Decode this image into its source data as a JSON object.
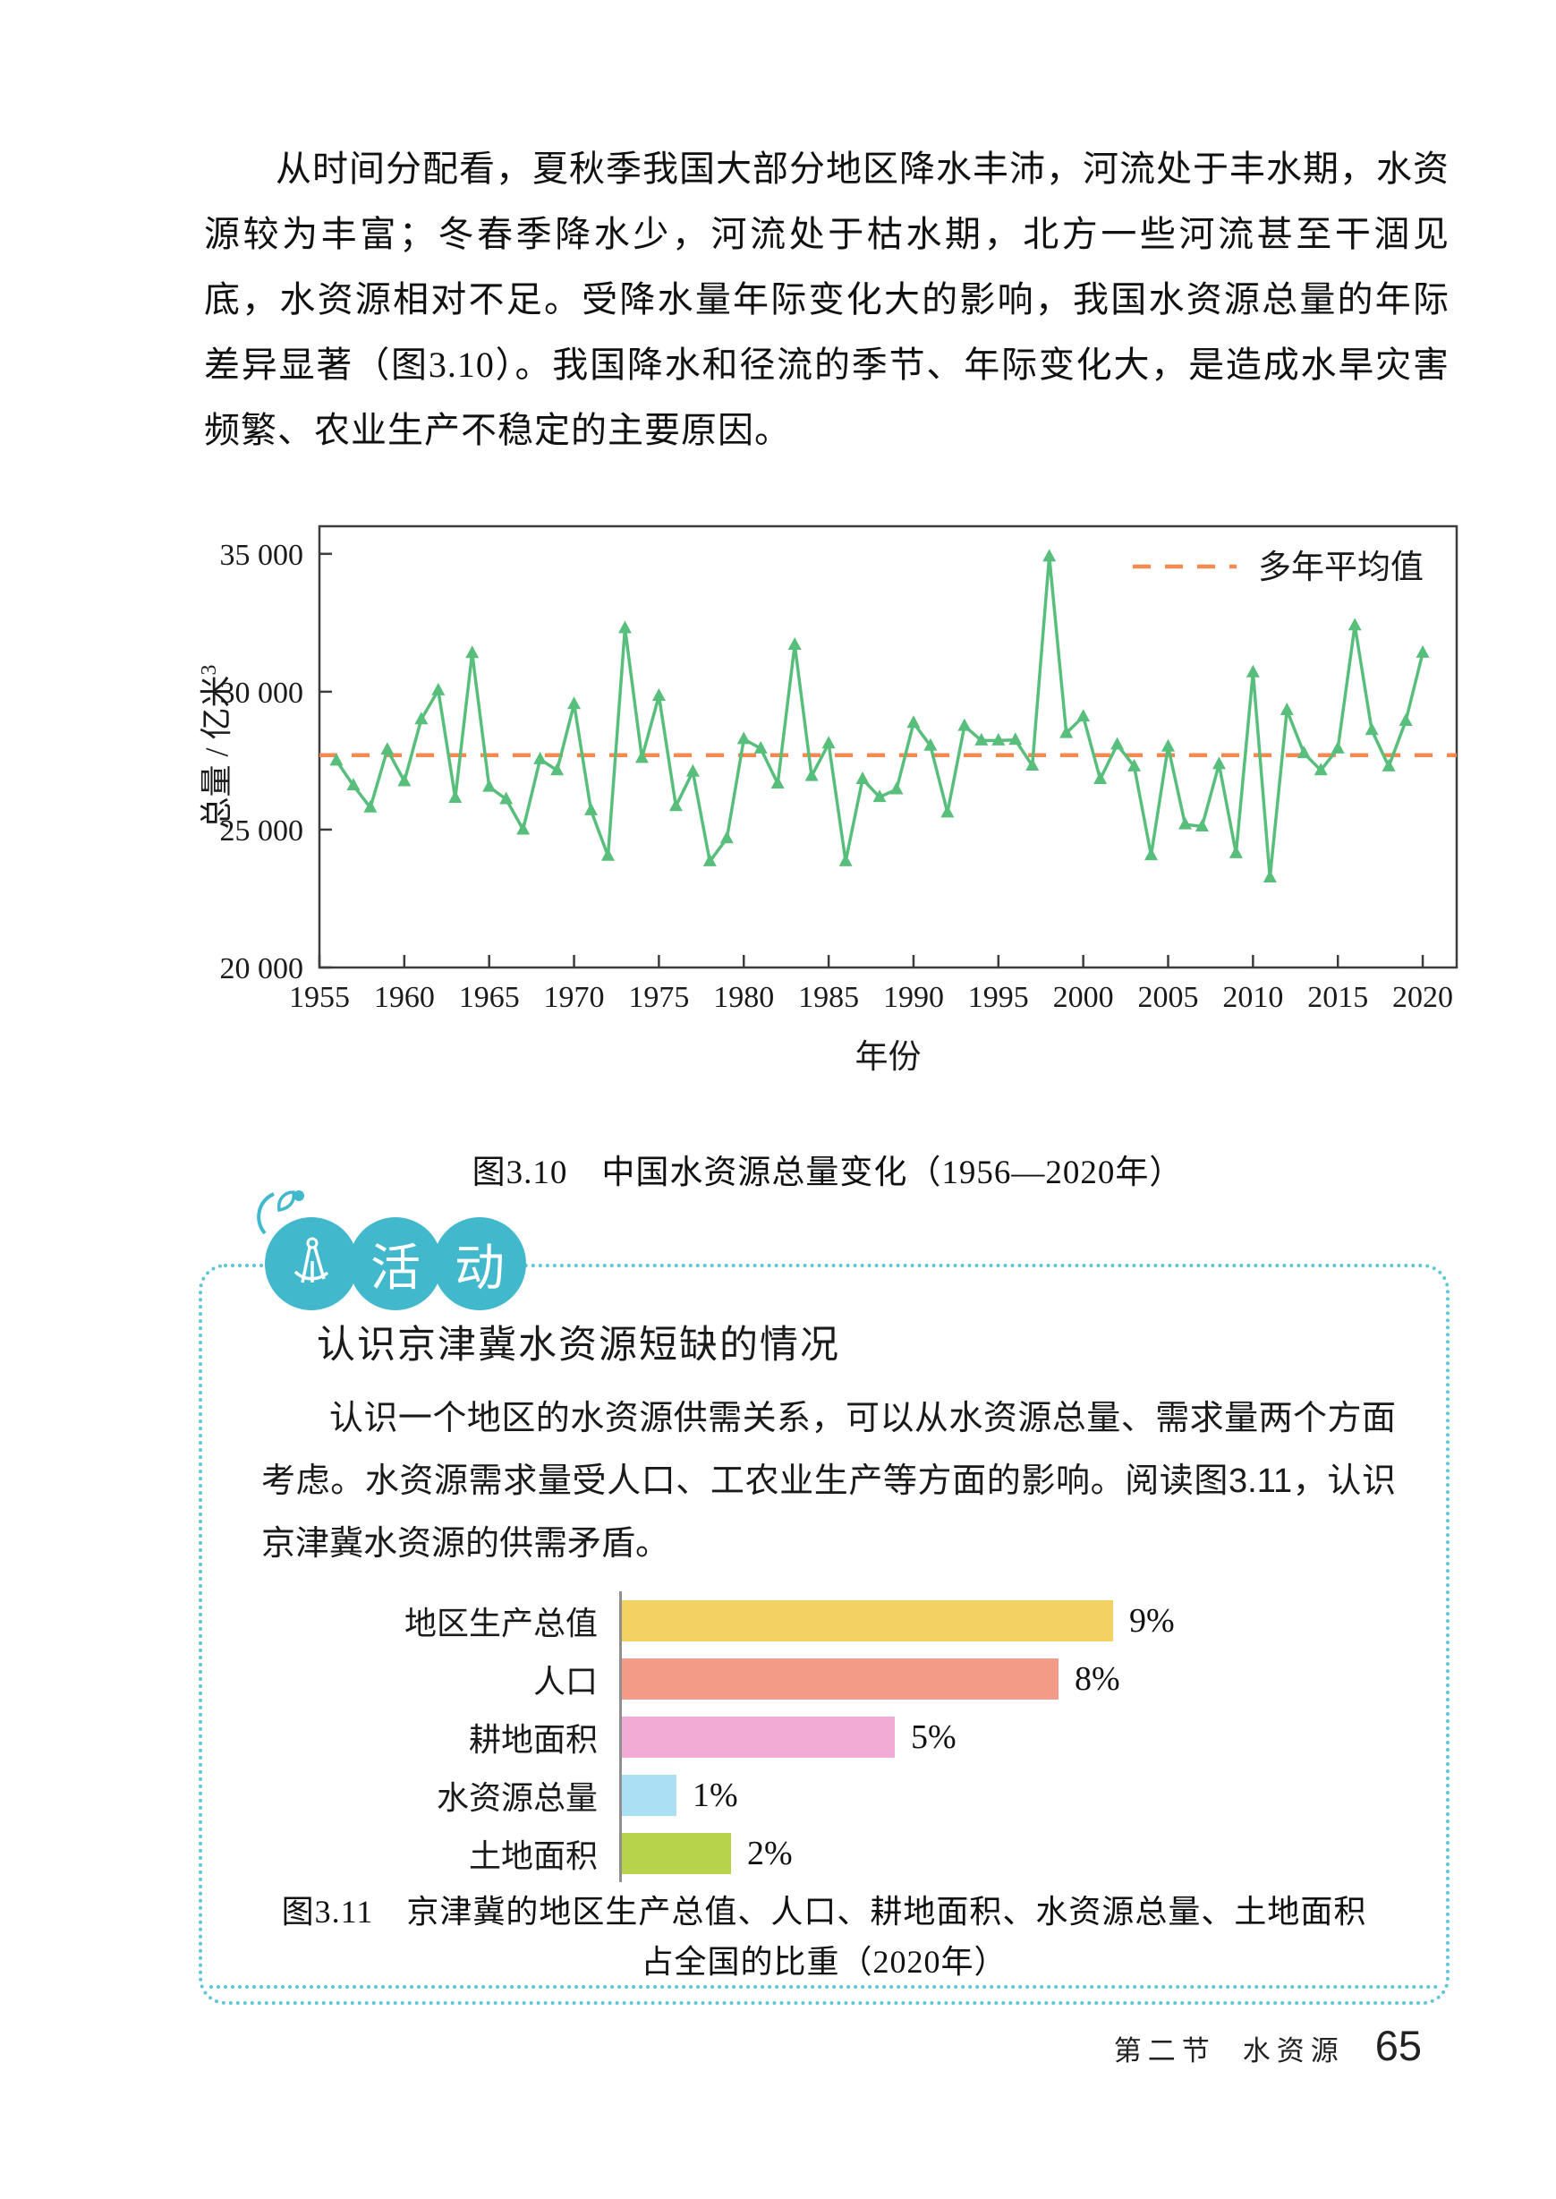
{
  "intro": {
    "text": "从时间分配看，夏秋季我国大部分地区降水丰沛，河流处于丰水期，水资源较为丰富；冬春季降水少，河流处于枯水期，北方一些河流甚至干涸见底，水资源相对不足。受降水量年际变化大的影响，我国水资源总量的年际差异显著（图3.10）。我国降水和径流的季节、年际变化大，是造成水旱灾害频繁、农业生产不稳定的主要原因。"
  },
  "activity": {
    "badge_chars": [
      "活",
      "动"
    ],
    "heading": "认识京津冀水资源短缺的情况",
    "paragraph": "认识一个地区的水资源供需关系，可以从水资源总量、需求量两个方面考虑。水资源需求量受人口、工农业生产等方面的影响。阅读图3.11，认识京津冀水资源的供需矛盾。"
  },
  "footer": {
    "section": "第二节",
    "topic": "水资源",
    "page_number": "65"
  },
  "colors": {
    "line_green": "#58be7b",
    "average_orange": "#f58a51",
    "axis_gray": "#3d3d3d",
    "activity_teal": "#41b8cc",
    "dotted_border_teal": "#5fc6d7"
  },
  "chart_data": [
    {
      "id": "fig-3-10",
      "type": "line",
      "title": "图3.10　中国水资源总量变化（1956—2020年）",
      "xlabel": "年份",
      "ylabel": "总量 / 亿米",
      "ylabel_sup": "3",
      "legend_position": "top-right-inside",
      "grid": false,
      "xlim": [
        1955,
        2022
      ],
      "ylim": [
        20000,
        36000
      ],
      "x_ticks": [
        1955,
        1960,
        1965,
        1970,
        1975,
        1980,
        1985,
        1990,
        1995,
        2000,
        2005,
        2010,
        2015,
        2020
      ],
      "y_ticks": [
        {
          "value": 35000,
          "label": "35 000"
        },
        {
          "value": 30000,
          "label": "30 000"
        },
        {
          "value": 25000,
          "label": "25 000"
        },
        {
          "value": 20000,
          "label": "20 000"
        }
      ],
      "line_color": "#58be7b",
      "marker": "triangle-up",
      "average": {
        "value": 27700,
        "label": "多年平均值",
        "color": "#f58a51",
        "style": "dashed"
      },
      "axis_color": "#3d3d3d",
      "years": [
        1956,
        1957,
        1958,
        1959,
        1960,
        1961,
        1962,
        1963,
        1964,
        1965,
        1966,
        1967,
        1968,
        1969,
        1970,
        1971,
        1972,
        1973,
        1974,
        1975,
        1976,
        1977,
        1978,
        1979,
        1980,
        1981,
        1982,
        1983,
        1984,
        1985,
        1986,
        1987,
        1988,
        1989,
        1990,
        1991,
        1992,
        1993,
        1994,
        1995,
        1996,
        1997,
        1998,
        1999,
        2000,
        2001,
        2002,
        2003,
        2004,
        2005,
        2006,
        2007,
        2008,
        2009,
        2010,
        2011,
        2012,
        2013,
        2014,
        2015,
        2016,
        2017,
        2018,
        2019,
        2020
      ],
      "values": [
        27500,
        26600,
        25800,
        27900,
        26750,
        29000,
        30050,
        26150,
        31400,
        26550,
        26100,
        25000,
        27550,
        27150,
        29550,
        25700,
        24050,
        32300,
        27600,
        29850,
        25850,
        27100,
        23850,
        24680,
        28280,
        27940,
        26670,
        31700,
        26940,
        28120,
        23850,
        26830,
        26180,
        26460,
        28870,
        28040,
        25620,
        28760,
        28230,
        28230,
        28250,
        27320,
        34900,
        28500,
        29100,
        26830,
        28080,
        27290,
        24070,
        28010,
        25190,
        25110,
        27370,
        24140,
        30700,
        23260,
        29330,
        27770,
        27150,
        27940,
        32400,
        28610,
        27290,
        28940,
        31410
      ]
    },
    {
      "id": "fig-3-11",
      "type": "bar",
      "orientation": "horizontal",
      "title_line1": "图3.11　京津冀的地区生产总值、人口、耕地面积、水资源总量、土地面积",
      "title_line2": "占全国的比重（2020年）",
      "categories": [
        "地区生产总值",
        "人口",
        "耕地面积",
        "水资源总量",
        "土地面积"
      ],
      "values": [
        9,
        8,
        5,
        1,
        2
      ],
      "value_labels": [
        "9%",
        "8%",
        "5%",
        "1%",
        "2%"
      ],
      "bar_colors": [
        "#f4d163",
        "#f49b87",
        "#f2abd4",
        "#abdff3",
        "#b7d24b"
      ],
      "xlim": [
        0,
        10
      ],
      "unit": "%"
    }
  ]
}
